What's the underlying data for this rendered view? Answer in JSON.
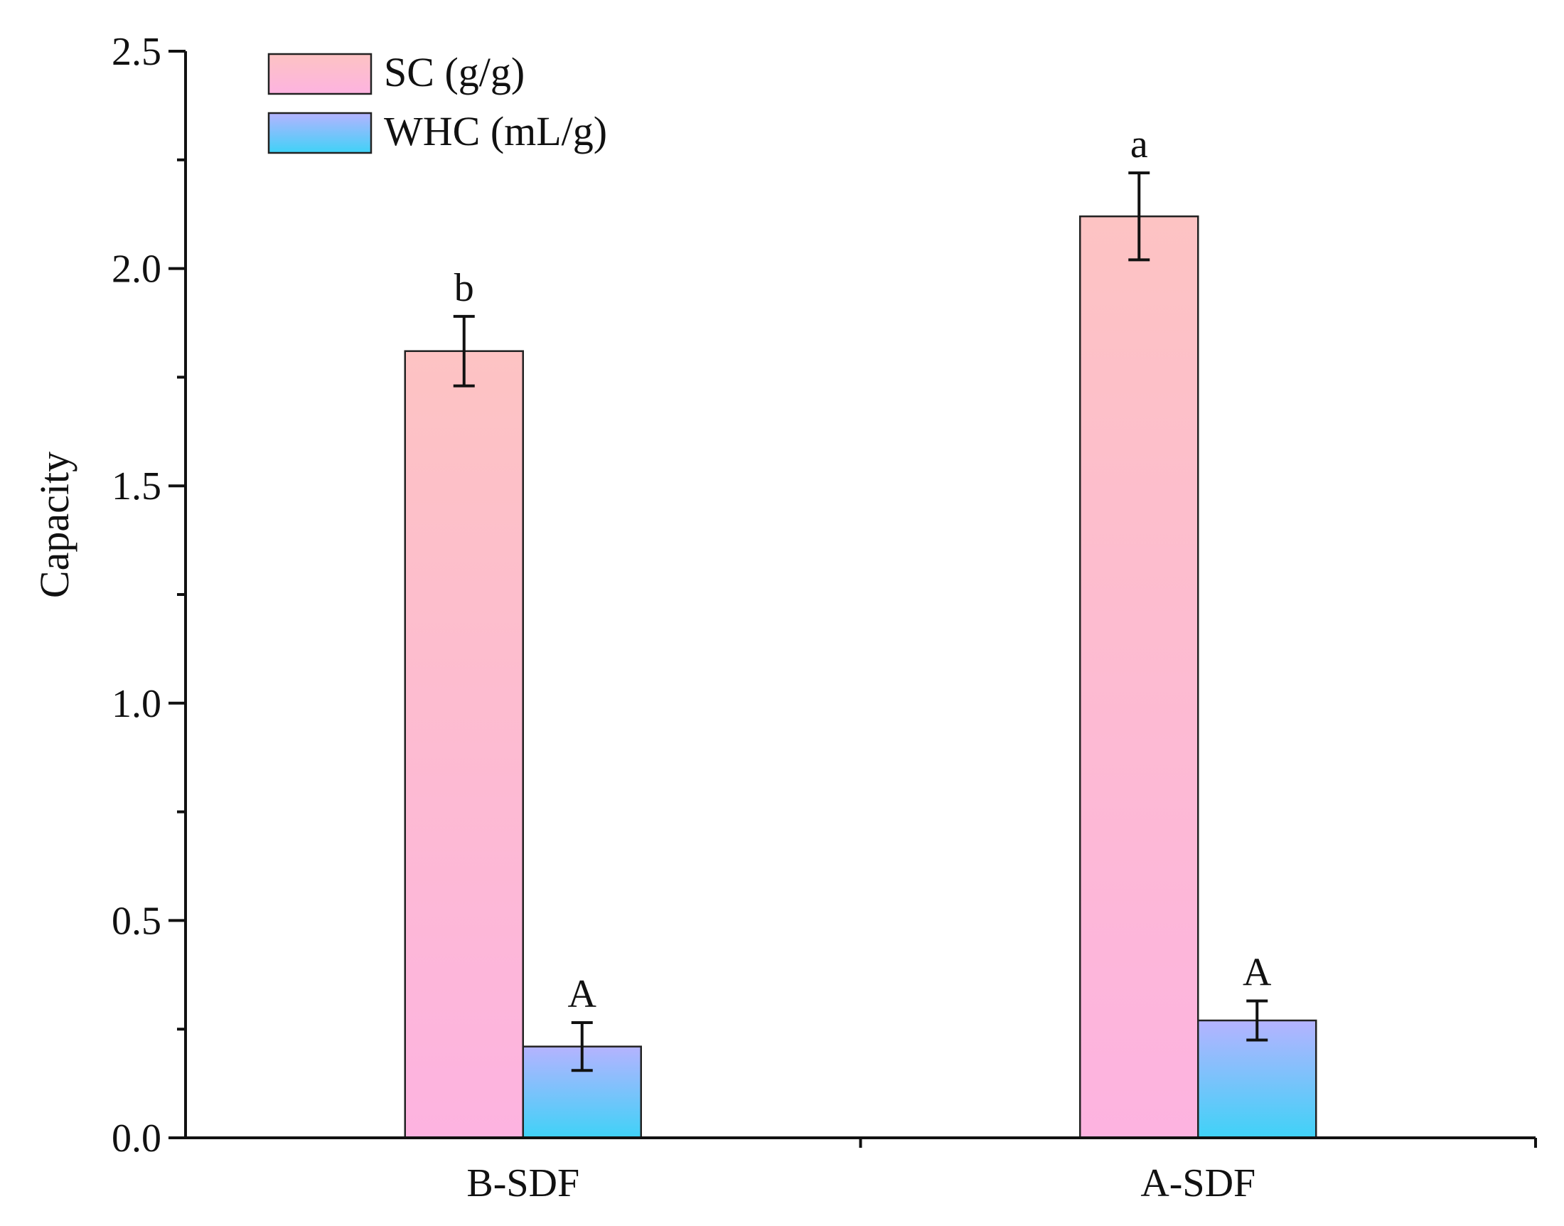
{
  "chart_data": {
    "type": "bar",
    "title": "",
    "xlabel": "",
    "ylabel": "Capacity",
    "ylim": [
      0,
      2.5
    ],
    "yticks": [
      "0.0",
      "0.5",
      "1.0",
      "1.5",
      "2.0",
      "2.5"
    ],
    "categories": [
      "B-SDF",
      "A-SDF"
    ],
    "series": [
      {
        "name": "SC (g/g)",
        "values": [
          1.81,
          2.12
        ],
        "errors": [
          0.08,
          0.1
        ],
        "letters": [
          "b",
          "a"
        ],
        "gradient": [
          "#fdc3c3",
          "#fdb3e0"
        ]
      },
      {
        "name": "WHC (mL/g)",
        "values": [
          0.21,
          0.27
        ],
        "errors": [
          0.055,
          0.045
        ],
        "letters": [
          "A",
          "A"
        ],
        "gradient": [
          "#b5b3ff",
          "#3fd2f7"
        ]
      }
    ],
    "legend_position": "top-left",
    "grid": false
  }
}
